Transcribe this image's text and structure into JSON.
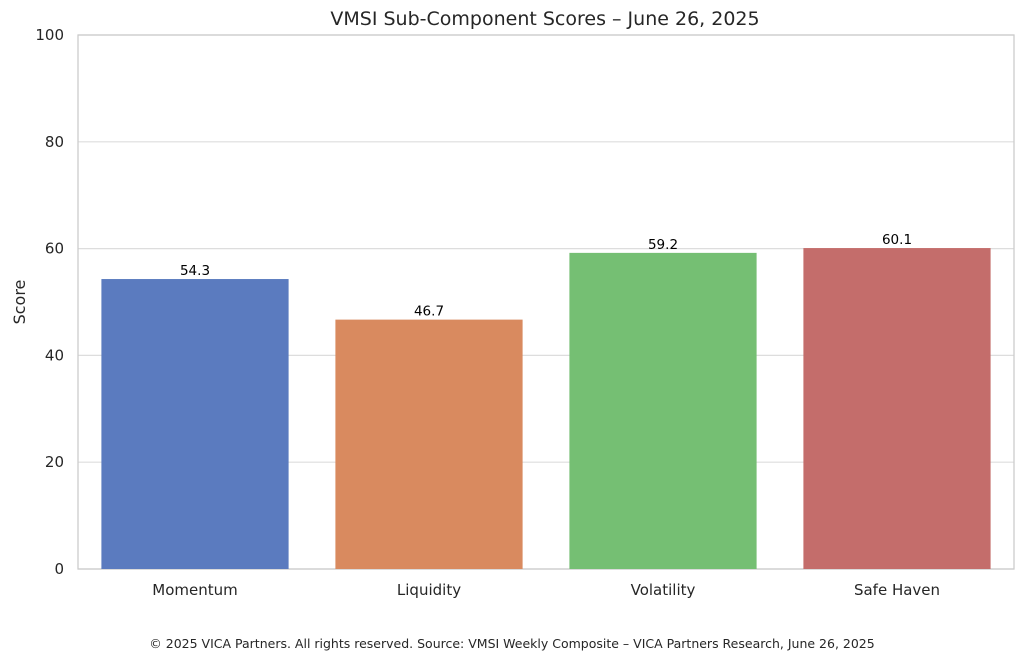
{
  "chart_data": {
    "type": "bar",
    "title": "VMSI Sub-Component Scores – June 26, 2025",
    "xlabel": "",
    "ylabel": "Score",
    "categories": [
      "Momentum",
      "Liquidity",
      "Volatility",
      "Safe Haven"
    ],
    "values": [
      54.3,
      46.7,
      59.2,
      60.1
    ],
    "value_labels": [
      "54.3",
      "46.7",
      "59.2",
      "60.1"
    ],
    "colors": [
      "#5b7bbf",
      "#d98a5f",
      "#75bf73",
      "#c46d6b"
    ],
    "ylim": [
      0,
      100
    ],
    "yticks": [
      0,
      20,
      40,
      60,
      80,
      100
    ],
    "grid": "horizontal",
    "legend": "none"
  },
  "footer": {
    "text": "© 2025 VICA Partners. All rights reserved. Source: VMSI Weekly Composite – VICA Partners Research, June 26, 2025"
  }
}
